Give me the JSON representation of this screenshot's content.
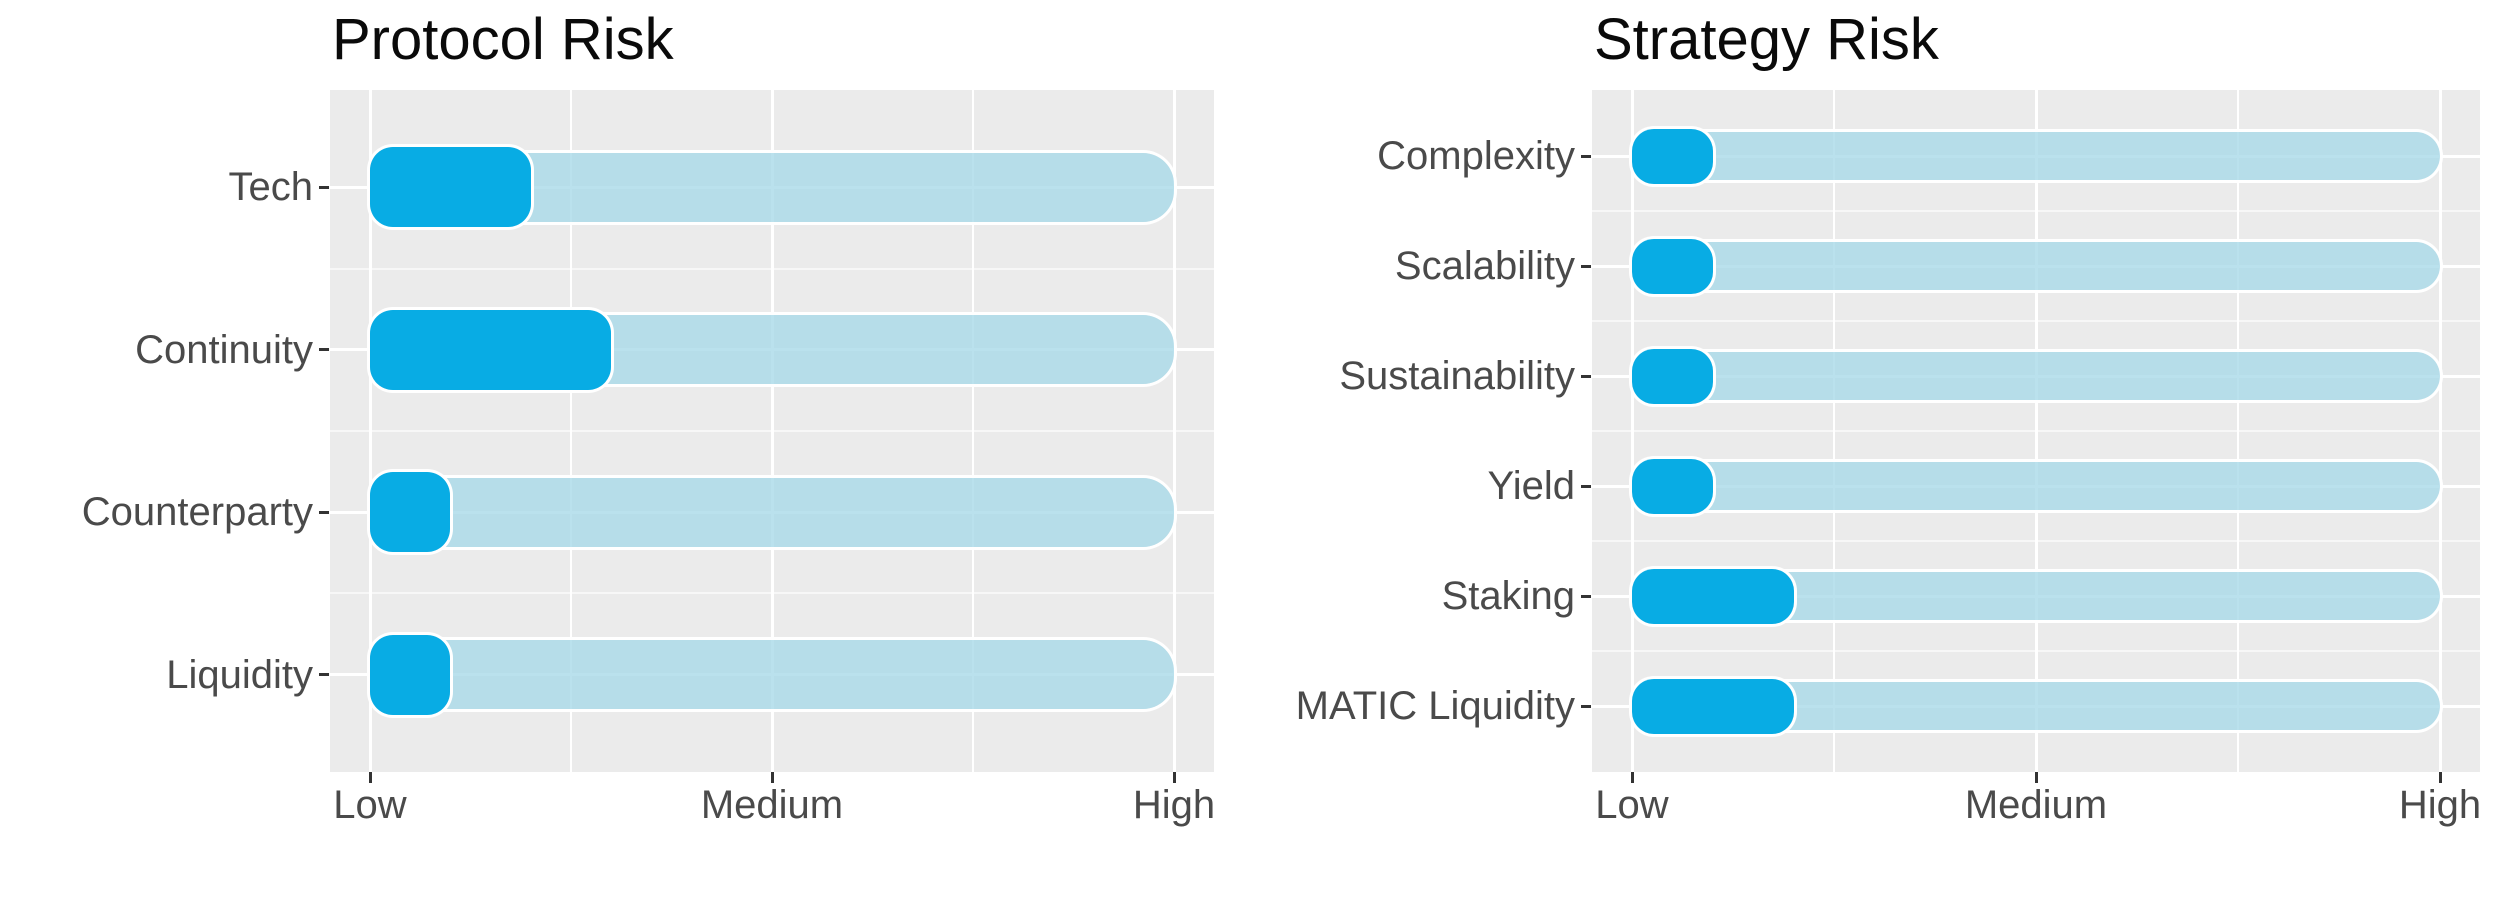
{
  "page": {
    "background": "#FFFFFF"
  },
  "colors": {
    "panel_background": "#EBEBEB",
    "grid_major": "#FFFFFF",
    "grid_minor_h": "rgba(255,255,255,0.6)",
    "bar_fill": "#08ACE4",
    "track_fill": "rgba(169,217,233,0.8)",
    "bar_outline": "#FFFFFF",
    "axis_text": "#4A4A4A",
    "title_text": "#0A0A0A",
    "tick_mark": "#333333"
  },
  "chart_data": [
    {
      "type": "bar",
      "orientation": "horizontal",
      "title": "Protocol Risk",
      "categories": [
        "Tech",
        "Continuity",
        "Counterparty",
        "Liquidity"
      ],
      "values": [
        1.4,
        1.6,
        1.2,
        1.2
      ],
      "track_range": [
        1,
        3
      ],
      "value_axis": {
        "min": 1,
        "max": 3,
        "tick_values": [
          1,
          2,
          3
        ],
        "tick_labels": [
          "Low",
          "Medium",
          "High"
        ],
        "minor_tick_values": [
          1.5,
          2.5
        ]
      },
      "grid": true,
      "legend": false
    },
    {
      "type": "bar",
      "orientation": "horizontal",
      "title": "Strategy Risk",
      "categories": [
        "Complexity",
        "Scalability",
        "Sustainability",
        "Yield",
        "Staking",
        "MATIC Liquidity"
      ],
      "values": [
        1.2,
        1.2,
        1.2,
        1.2,
        1.4,
        1.4
      ],
      "track_range": [
        1,
        3
      ],
      "value_axis": {
        "min": 1,
        "max": 3,
        "tick_values": [
          1,
          2,
          3
        ],
        "tick_labels": [
          "Low",
          "Medium",
          "High"
        ],
        "minor_tick_values": [
          1.5,
          2.5
        ]
      },
      "grid": true,
      "legend": false
    }
  ]
}
